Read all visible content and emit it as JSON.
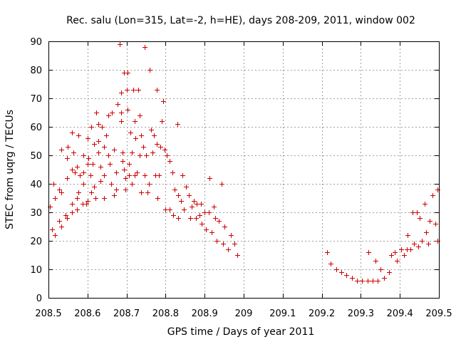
{
  "chart_data": {
    "type": "scatter",
    "title": "Rec. salu (Lon=315, Lat=-2, h=HE), days 208-209, 2011, window 002",
    "xlabel": "GPS time / Days of year 2011",
    "ylabel": "STEC from uqrg / TECUs",
    "xlim": [
      208.5,
      209.5
    ],
    "ylim": [
      0,
      90
    ],
    "grid": true,
    "marker": "+",
    "color": "#cc0000",
    "x_ticks": [
      "208.5",
      "208.6",
      "208.7",
      "208.8",
      "208.9",
      "209",
      "209.1",
      "209.2",
      "209.3",
      "209.4",
      "209.5"
    ],
    "y_ticks": [
      "0",
      "10",
      "20",
      "30",
      "40",
      "50",
      "60",
      "70",
      "80",
      "90"
    ],
    "x_tick_values": [
      208.5,
      208.6,
      208.7,
      208.8,
      208.9,
      209.0,
      209.1,
      209.2,
      209.3,
      209.4,
      209.5
    ],
    "y_tick_values": [
      0,
      10,
      20,
      30,
      40,
      50,
      60,
      70,
      80,
      90
    ],
    "points": [
      [
        208.503,
        32
      ],
      [
        208.51,
        24
      ],
      [
        208.517,
        22
      ],
      [
        208.517,
        35
      ],
      [
        208.513,
        40
      ],
      [
        208.527,
        27
      ],
      [
        208.533,
        25
      ],
      [
        208.527,
        38
      ],
      [
        208.533,
        37
      ],
      [
        208.533,
        52
      ],
      [
        208.543,
        29
      ],
      [
        208.547,
        28
      ],
      [
        208.547,
        42
      ],
      [
        208.547,
        49
      ],
      [
        208.55,
        53
      ],
      [
        208.56,
        45
      ],
      [
        208.56,
        33
      ],
      [
        208.56,
        30
      ],
      [
        208.56,
        58
      ],
      [
        208.563,
        51
      ],
      [
        208.567,
        44
      ],
      [
        208.573,
        31
      ],
      [
        208.573,
        35
      ],
      [
        208.573,
        46
      ],
      [
        208.577,
        57
      ],
      [
        208.577,
        37
      ],
      [
        208.58,
        43
      ],
      [
        208.587,
        33
      ],
      [
        208.59,
        50
      ],
      [
        208.59,
        44
      ],
      [
        208.59,
        40
      ],
      [
        208.597,
        33
      ],
      [
        208.6,
        56
      ],
      [
        208.6,
        47
      ],
      [
        208.6,
        34
      ],
      [
        208.603,
        49
      ],
      [
        208.61,
        60
      ],
      [
        208.607,
        43
      ],
      [
        208.61,
        37
      ],
      [
        208.617,
        54
      ],
      [
        208.613,
        47
      ],
      [
        208.617,
        39
      ],
      [
        208.62,
        35
      ],
      [
        208.623,
        65
      ],
      [
        208.627,
        61
      ],
      [
        208.627,
        55
      ],
      [
        208.627,
        51
      ],
      [
        208.633,
        46
      ],
      [
        208.633,
        41
      ],
      [
        208.637,
        60
      ],
      [
        208.643,
        53
      ],
      [
        208.643,
        43
      ],
      [
        208.643,
        35
      ],
      [
        208.647,
        57
      ],
      [
        208.653,
        64
      ],
      [
        208.653,
        50
      ],
      [
        208.657,
        47
      ],
      [
        208.66,
        40
      ],
      [
        208.663,
        65
      ],
      [
        208.667,
        52
      ],
      [
        208.667,
        36
      ],
      [
        208.673,
        44
      ],
      [
        208.673,
        38
      ],
      [
        208.677,
        68
      ],
      [
        208.683,
        89
      ],
      [
        208.687,
        65
      ],
      [
        208.687,
        62
      ],
      [
        208.687,
        72
      ],
      [
        208.69,
        51
      ],
      [
        208.69,
        48
      ],
      [
        208.693,
        79
      ],
      [
        208.693,
        45
      ],
      [
        208.697,
        42
      ],
      [
        208.697,
        38
      ],
      [
        208.7,
        73
      ],
      [
        208.703,
        79
      ],
      [
        208.703,
        66
      ],
      [
        208.707,
        47
      ],
      [
        208.707,
        43
      ],
      [
        208.71,
        58
      ],
      [
        208.713,
        51
      ],
      [
        208.713,
        40
      ],
      [
        208.717,
        73
      ],
      [
        208.72,
        62
      ],
      [
        208.72,
        43
      ],
      [
        208.723,
        56
      ],
      [
        208.727,
        44
      ],
      [
        208.73,
        73
      ],
      [
        208.733,
        64
      ],
      [
        208.733,
        50
      ],
      [
        208.737,
        57
      ],
      [
        208.737,
        37
      ],
      [
        208.743,
        53
      ],
      [
        208.747,
        88
      ],
      [
        208.747,
        43
      ],
      [
        208.75,
        50
      ],
      [
        208.753,
        37
      ],
      [
        208.757,
        40
      ],
      [
        208.76,
        80
      ],
      [
        208.763,
        59
      ],
      [
        208.767,
        51
      ],
      [
        208.77,
        57
      ],
      [
        208.773,
        43
      ],
      [
        208.777,
        73
      ],
      [
        208.777,
        54
      ],
      [
        208.78,
        35
      ],
      [
        208.783,
        43
      ],
      [
        208.787,
        53
      ],
      [
        208.79,
        62
      ],
      [
        208.793,
        69
      ],
      [
        208.797,
        52
      ],
      [
        208.8,
        31
      ],
      [
        208.803,
        50
      ],
      [
        208.81,
        48
      ],
      [
        208.81,
        31
      ],
      [
        208.817,
        44
      ],
      [
        208.82,
        29
      ],
      [
        208.823,
        38
      ],
      [
        208.83,
        61
      ],
      [
        208.833,
        36
      ],
      [
        208.833,
        28
      ],
      [
        208.84,
        34
      ],
      [
        208.843,
        43
      ],
      [
        208.847,
        31
      ],
      [
        208.853,
        39
      ],
      [
        208.86,
        36
      ],
      [
        208.863,
        28
      ],
      [
        208.867,
        32
      ],
      [
        208.873,
        34
      ],
      [
        208.877,
        28
      ],
      [
        208.88,
        33
      ],
      [
        208.887,
        29
      ],
      [
        208.89,
        33
      ],
      [
        208.893,
        26
      ],
      [
        208.9,
        30
      ],
      [
        208.903,
        24
      ],
      [
        208.91,
        30
      ],
      [
        208.913,
        42
      ],
      [
        208.917,
        23
      ],
      [
        208.923,
        32
      ],
      [
        208.927,
        28
      ],
      [
        208.93,
        20
      ],
      [
        208.937,
        27
      ],
      [
        208.943,
        40
      ],
      [
        208.947,
        19
      ],
      [
        208.95,
        25
      ],
      [
        208.96,
        17
      ],
      [
        208.967,
        22
      ],
      [
        208.977,
        19
      ],
      [
        208.983,
        15
      ],
      [
        209.213,
        16
      ],
      [
        209.223,
        12
      ],
      [
        209.237,
        10
      ],
      [
        209.25,
        9
      ],
      [
        209.263,
        8
      ],
      [
        209.277,
        7
      ],
      [
        209.29,
        6
      ],
      [
        209.303,
        6
      ],
      [
        209.317,
        6
      ],
      [
        209.32,
        16
      ],
      [
        209.33,
        6
      ],
      [
        209.337,
        13
      ],
      [
        209.343,
        6
      ],
      [
        209.35,
        10
      ],
      [
        209.36,
        7
      ],
      [
        209.373,
        9
      ],
      [
        209.377,
        15
      ],
      [
        209.387,
        16
      ],
      [
        209.393,
        13
      ],
      [
        209.403,
        17
      ],
      [
        209.41,
        15
      ],
      [
        209.417,
        17
      ],
      [
        209.42,
        22
      ],
      [
        209.427,
        17
      ],
      [
        209.433,
        30
      ],
      [
        209.437,
        19
      ],
      [
        209.443,
        30
      ],
      [
        209.447,
        18
      ],
      [
        209.45,
        28
      ],
      [
        209.457,
        20
      ],
      [
        209.463,
        33
      ],
      [
        209.467,
        23
      ],
      [
        209.473,
        19
      ],
      [
        209.477,
        27
      ],
      [
        209.483,
        36
      ],
      [
        209.49,
        26
      ],
      [
        209.497,
        38
      ],
      [
        209.497,
        20
      ]
    ]
  }
}
